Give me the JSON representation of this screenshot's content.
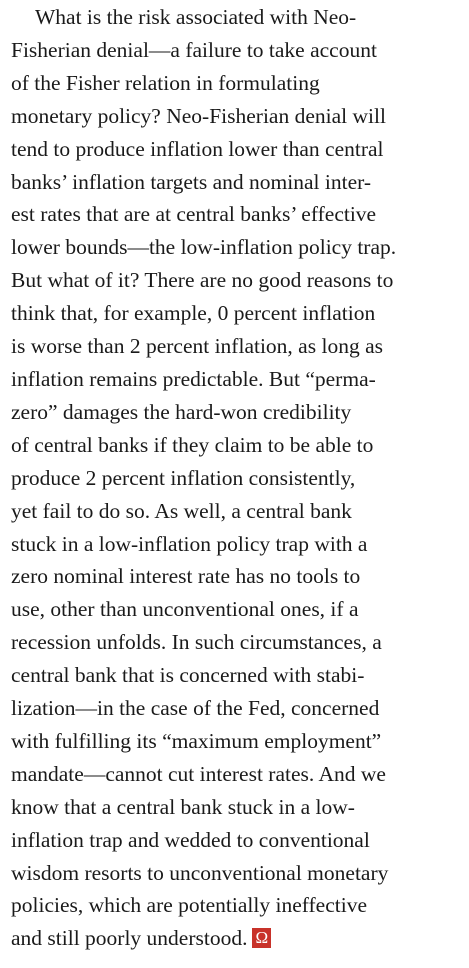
{
  "paragraph": {
    "lines": [
      "What is the risk associated with Neo-",
      "Fisherian denial—a failure to take account",
      "of the Fisher relation in formulating",
      "monetary policy? Neo-Fisherian denial will",
      "tend to produce inflation lower than central",
      "banks’ inflation targets and nominal inter-",
      "est rates that are at central banks’ effective",
      "lower bounds—the low-inflation policy trap.",
      "But what of it? There are no good reasons to",
      "think that, for example, 0 percent inflation",
      "is worse than 2 percent inflation, as long as",
      "inflation remains predictable. But “perma-",
      "zero” damages the hard-won credibility",
      "of central banks if they claim to be able to",
      "produce 2 percent inflation consistently,",
      "yet fail to do so. As well, a central bank",
      "stuck in a low-inflation policy trap with a",
      "zero nominal interest rate has no tools to",
      "use, other than unconventional ones, if a",
      "recession unfolds. In such circumstances, a",
      "central bank that is concerned with stabi-",
      "lization—in the case of the Fed, concerned",
      "with fulfilling its “maximum employment”",
      "mandate—cannot cut interest rates. And we",
      "know that a central bank stuck in a low-",
      "inflation trap and wedded to conventional",
      "wisdom resorts to unconventional monetary",
      "policies, which are potentially ineffective",
      "and still poorly understood."
    ],
    "end_mark": "Ω"
  }
}
